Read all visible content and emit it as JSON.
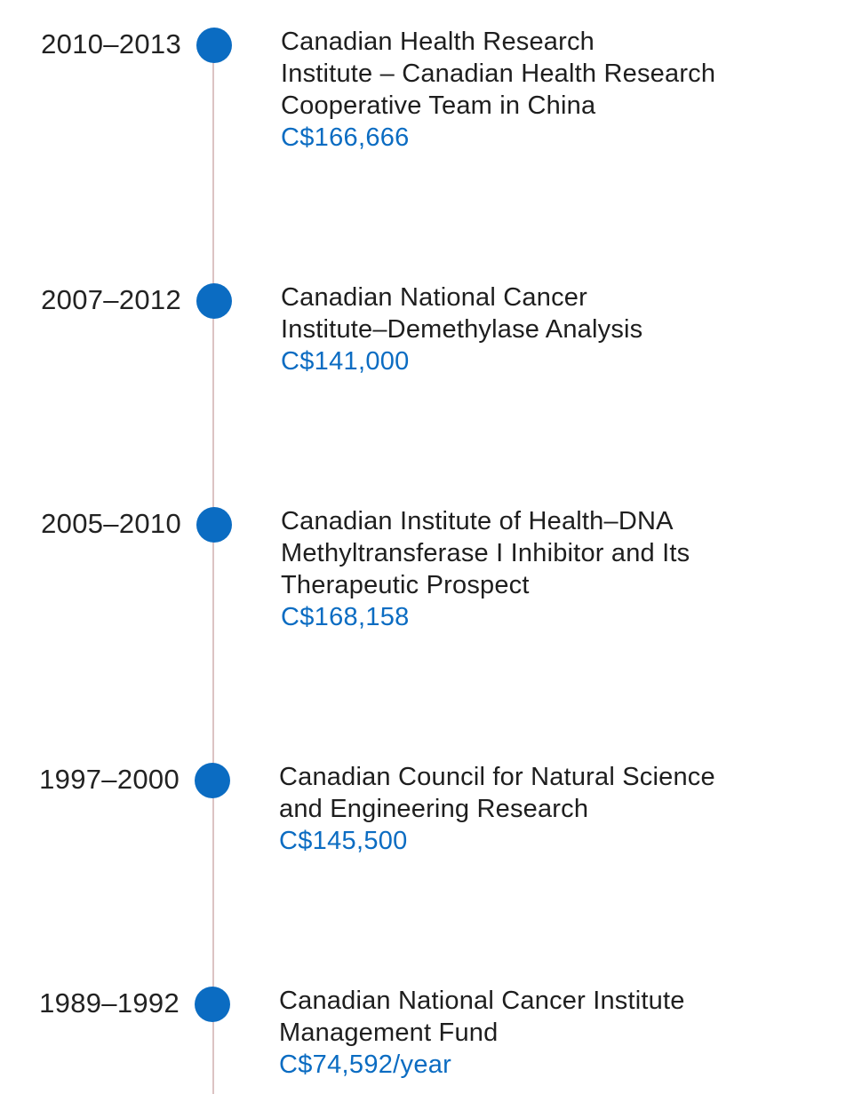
{
  "accent_color": "#0b6cc2",
  "line_color": "#dcc3c3",
  "entries": [
    {
      "years": "2010–2013",
      "title_lines": [
        "Canadian Health Research",
        "Institute – Canadian Health Research",
        "Cooperative Team in China"
      ],
      "amount": "C$166,666"
    },
    {
      "years": "2007–2012",
      "title_lines": [
        "Canadian National Cancer",
        "Institute–Demethylase Analysis"
      ],
      "amount": "C$141,000"
    },
    {
      "years": "2005–2010",
      "title_lines": [
        "Canadian Institute of Health–DNA",
        "Methyltransferase I Inhibitor and Its",
        "Therapeutic Prospect"
      ],
      "amount": "C$168,158"
    },
    {
      "years": "1997–2000",
      "title_lines": [
        "Canadian Council for Natural Science",
        "and Engineering Research"
      ],
      "amount": "C$145,500"
    },
    {
      "years": "1989–1992",
      "title_lines": [
        "Canadian National Cancer Institute",
        "Management Fund"
      ],
      "amount": "C$74,592/year"
    }
  ]
}
